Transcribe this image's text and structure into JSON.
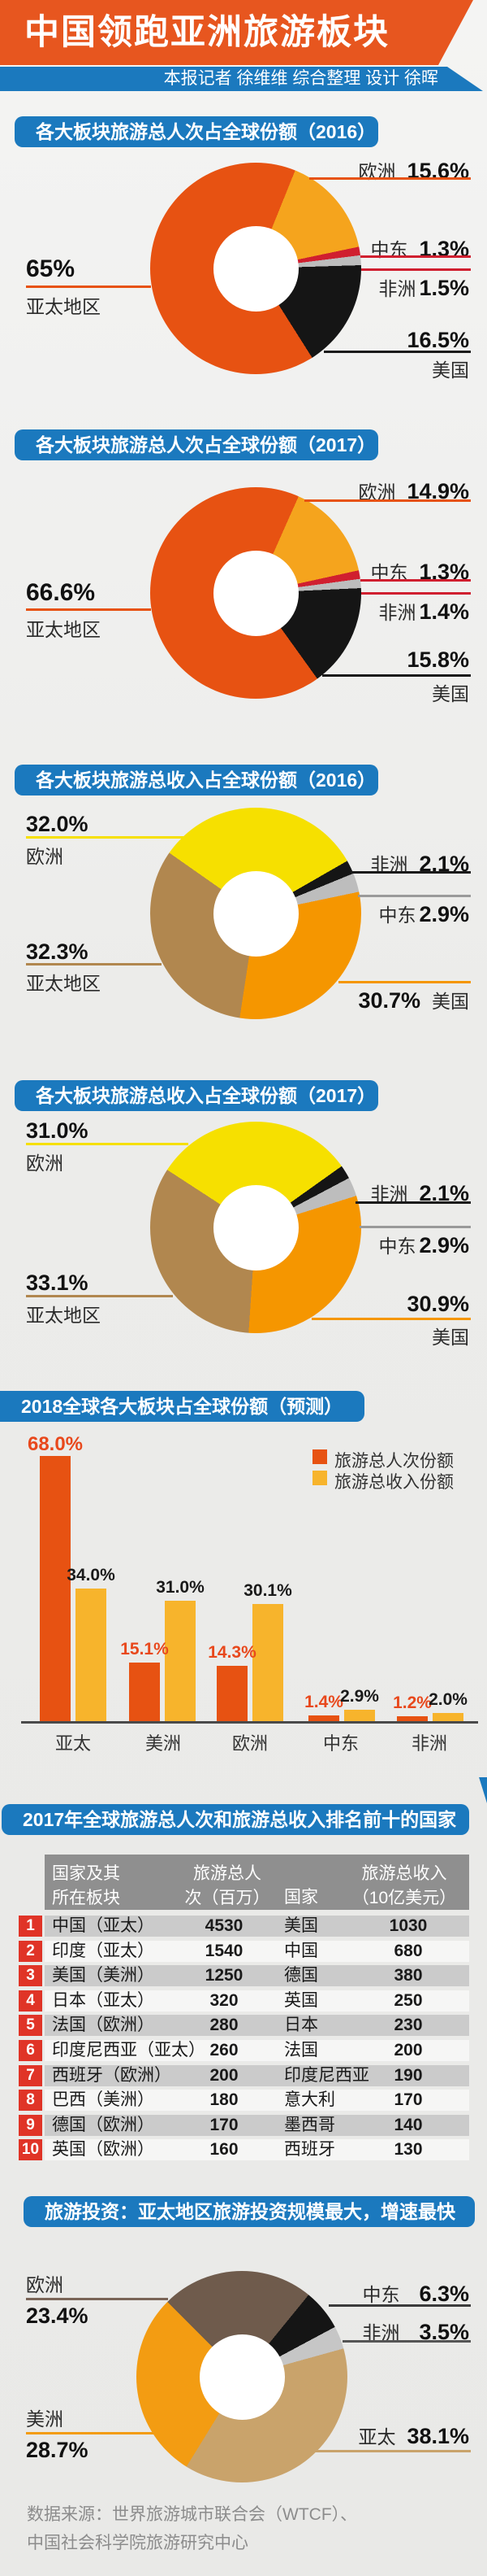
{
  "header": {
    "title": "中国领跑亚洲旅游板块",
    "byline": "本报记者 徐维维 综合整理 设计 徐晖"
  },
  "colors": {
    "banner_orange": "#E7561F",
    "banner_blue": "#1B79BE",
    "donut_orange": "#E75212",
    "donut_amber": "#F5A41D",
    "donut_red": "#D01F2F",
    "donut_gray": "#BDBDBD",
    "donut_black": "#151515",
    "donut_yellow": "#F6E000",
    "donut_brown": "#B1874F",
    "donut_orange2": "#F59600",
    "invest_darkbrown": "#6F5B4C",
    "invest_tan": "#C9A36B",
    "invest_orange": "#F39C12",
    "invest_gray": "#C6C6C6",
    "bar_yellow": "#F7B42C",
    "table_header_gray": "#8F8F8F",
    "row_gray": "#CBCBCB",
    "rank_red": "#E03427"
  },
  "chart_data": [
    {
      "type": "donut",
      "title": "各大板块旅游总人次占全球份额（2016）",
      "start_angle": 22,
      "segments": [
        {
          "name": "欧洲",
          "value": 15.6,
          "label": "15.6%",
          "color": "#F5A41D"
        },
        {
          "name": "中东",
          "value": 1.3,
          "label": "1.3%",
          "color": "#D01F2F"
        },
        {
          "name": "非洲",
          "value": 1.5,
          "label": "1.5%",
          "color": "#BDBDBD"
        },
        {
          "name": "美国",
          "value": 16.5,
          "label": "16.5%",
          "color": "#151515"
        },
        {
          "name": "亚太地区",
          "value": 65,
          "label": "65%",
          "color": "#E75212"
        }
      ]
    },
    {
      "type": "donut",
      "title": "各大板块旅游总人次占全球份额（2017）",
      "start_angle": 24,
      "segments": [
        {
          "name": "欧洲",
          "value": 14.9,
          "label": "14.9%",
          "color": "#F5A41D"
        },
        {
          "name": "中东",
          "value": 1.3,
          "label": "1.3%",
          "color": "#D01F2F"
        },
        {
          "name": "非洲",
          "value": 1.4,
          "label": "1.4%",
          "color": "#BDBDBD"
        },
        {
          "name": "美国",
          "value": 15.8,
          "label": "15.8%",
          "color": "#151515"
        },
        {
          "name": "亚太地区",
          "value": 66.6,
          "label": "66.6%",
          "color": "#E75212"
        }
      ]
    },
    {
      "type": "donut",
      "title": "各大板块旅游总收入占全球份额（2016）",
      "start_angle": 305,
      "segments": [
        {
          "name": "欧洲",
          "value": 32.0,
          "label": "32.0%",
          "color": "#F6E000"
        },
        {
          "name": "非洲",
          "value": 2.1,
          "label": "2.1%",
          "color": "#151515"
        },
        {
          "name": "中东",
          "value": 2.9,
          "label": "2.9%",
          "color": "#BDBDBD"
        },
        {
          "name": "美国",
          "value": 30.7,
          "label": "30.7%",
          "color": "#F59600"
        },
        {
          "name": "亚太地区",
          "value": 32.3,
          "label": "32.3%",
          "color": "#B1874F"
        }
      ]
    },
    {
      "type": "donut",
      "title": "各大板块旅游总收入占全球份额（2017）",
      "start_angle": 303,
      "segments": [
        {
          "name": "欧洲",
          "value": 31.0,
          "label": "31.0%",
          "color": "#F6E000"
        },
        {
          "name": "非洲",
          "value": 2.1,
          "label": "2.1%",
          "color": "#151515"
        },
        {
          "name": "中东",
          "value": 2.9,
          "label": "2.9%",
          "color": "#BDBDBD"
        },
        {
          "name": "美国",
          "value": 30.9,
          "label": "30.9%",
          "color": "#F59600"
        },
        {
          "name": "亚太地区",
          "value": 33.1,
          "label": "33.1%",
          "color": "#B1874F"
        }
      ]
    },
    {
      "type": "bar",
      "title": "2018全球各大板块占全球份额（预测）",
      "categories": [
        "亚太",
        "美洲",
        "欧洲",
        "中东",
        "非洲"
      ],
      "ylim": [
        0,
        70
      ],
      "series": [
        {
          "name": "旅游总人次份额",
          "color": "#E75212",
          "values": [
            68.0,
            15.1,
            14.3,
            1.4,
            1.2
          ],
          "labels": [
            "68.0%",
            "15.1%",
            "14.3%",
            "1.4%",
            "1.2%"
          ]
        },
        {
          "name": "旅游总收入份额",
          "color": "#F7B42C",
          "values": [
            34.0,
            31.0,
            30.1,
            2.9,
            2.0
          ],
          "labels": [
            "34.0%",
            "31.0%",
            "30.1%",
            "2.9%",
            "2.0%"
          ]
        }
      ]
    },
    {
      "type": "table",
      "title": "2017年全球旅游总人次和旅游总收入排名前十的国家",
      "headers": [
        "国家及其\n所在板块",
        "旅游总人\n次（百万）",
        "国家",
        "旅游总收入\n（10亿美元）"
      ],
      "rows": [
        [
          "1",
          "中国（亚太）",
          "4530",
          "美国",
          "1030"
        ],
        [
          "2",
          "印度（亚太）",
          "1540",
          "中国",
          "680"
        ],
        [
          "3",
          "美国（美洲）",
          "1250",
          "德国",
          "380"
        ],
        [
          "4",
          "日本（亚太）",
          "320",
          "英国",
          "250"
        ],
        [
          "5",
          "法国（欧洲）",
          "280",
          "日本",
          "230"
        ],
        [
          "6",
          "印度尼西亚（亚太）",
          "260",
          "法国",
          "200"
        ],
        [
          "7",
          "西班牙（欧洲）",
          "200",
          "印度尼西亚",
          "190"
        ],
        [
          "8",
          "巴西（美洲）",
          "180",
          "意大利",
          "170"
        ],
        [
          "9",
          "德国（欧洲）",
          "170",
          "墨西哥",
          "140"
        ],
        [
          "10",
          "英国（欧洲）",
          "160",
          "西班牙",
          "130"
        ]
      ]
    },
    {
      "type": "donut",
      "title": "旅游投资：亚太地区旅游投资规模最大，增速最快",
      "start_angle": 315,
      "segments": [
        {
          "name": "欧洲",
          "value": 23.4,
          "label": "23.4%",
          "color": "#6F5B4C"
        },
        {
          "name": "中东",
          "value": 6.3,
          "label": "6.3%",
          "color": "#151515"
        },
        {
          "name": "非洲",
          "value": 3.5,
          "label": "3.5%",
          "color": "#C6C6C6"
        },
        {
          "name": "亚太",
          "value": 38.1,
          "label": "38.1%",
          "color": "#C9A36B"
        },
        {
          "name": "美洲",
          "value": 28.7,
          "label": "28.7%",
          "color": "#F39C12"
        }
      ]
    }
  ],
  "source_lines": {
    "line1": "数据来源：世界旅游城市联合会（WTCF）、",
    "line2": "中国社会科学院旅游研究中心"
  }
}
